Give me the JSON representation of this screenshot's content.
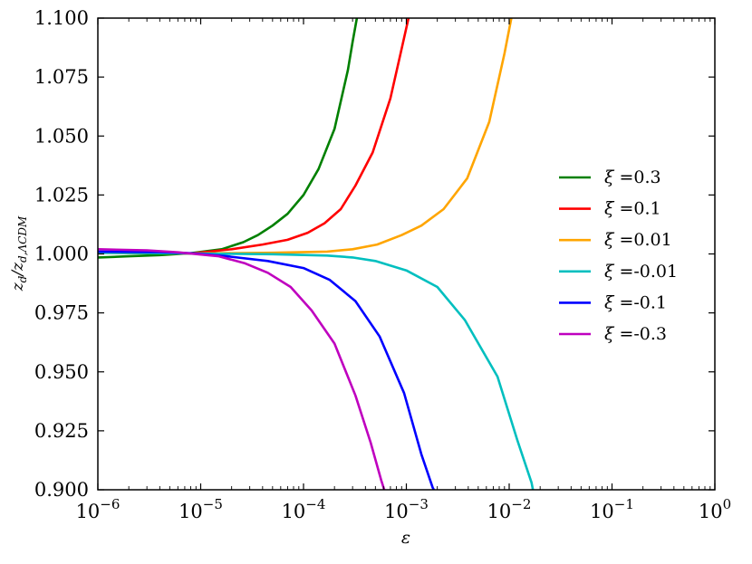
{
  "chart_data": {
    "type": "line",
    "xlabel": "ε",
    "ylabel": "z_d / z_d,ΛCDM",
    "x_scale": "log",
    "xlim": [
      1e-06,
      1
    ],
    "ylim": [
      0.9,
      1.1
    ],
    "x_ticks": [
      {
        "value": 1e-06,
        "base": "10",
        "exp": "−6"
      },
      {
        "value": 1e-05,
        "base": "10",
        "exp": "−5"
      },
      {
        "value": 0.0001,
        "base": "10",
        "exp": "−4"
      },
      {
        "value": 0.001,
        "base": "10",
        "exp": "−3"
      },
      {
        "value": 0.01,
        "base": "10",
        "exp": "−2"
      },
      {
        "value": 0.1,
        "base": "10",
        "exp": "−1"
      },
      {
        "value": 1,
        "base": "10",
        "exp": "0"
      }
    ],
    "y_ticks": [
      {
        "value": 0.9,
        "label": "0.900"
      },
      {
        "value": 0.925,
        "label": "0.925"
      },
      {
        "value": 0.95,
        "label": "0.950"
      },
      {
        "value": 0.975,
        "label": "0.975"
      },
      {
        "value": 1.0,
        "label": "1.000"
      },
      {
        "value": 1.025,
        "label": "1.025"
      },
      {
        "value": 1.05,
        "label": "1.050"
      },
      {
        "value": 1.075,
        "label": "1.075"
      },
      {
        "value": 1.1,
        "label": "1.100"
      }
    ],
    "legend_position": "center-right",
    "series": [
      {
        "name": "ξ =0.3",
        "symbol": "ξ",
        "value_label": "=0.3",
        "color": "#008000",
        "points": [
          [
            1e-06,
            0.9985
          ],
          [
            2e-06,
            0.999
          ],
          [
            4e-06,
            0.9995
          ],
          [
            8e-06,
            1.0003
          ],
          [
            1.6e-05,
            1.002
          ],
          [
            2.6e-05,
            1.005
          ],
          [
            3.6e-05,
            1.008
          ],
          [
            5e-05,
            1.012
          ],
          [
            7e-05,
            1.017
          ],
          [
            0.0001,
            1.025
          ],
          [
            0.00014,
            1.036
          ],
          [
            0.0002,
            1.053
          ],
          [
            0.00027,
            1.078
          ],
          [
            0.0003,
            1.09
          ],
          [
            0.00033,
            1.1
          ]
        ]
      },
      {
        "name": "ξ =0.1",
        "symbol": "ξ",
        "value_label": "=0.1",
        "color": "#ff0000",
        "points": [
          [
            1e-06,
            1.0005
          ],
          [
            4e-06,
            1.0003
          ],
          [
            8e-06,
            1.0002
          ],
          [
            2e-05,
            1.002
          ],
          [
            4e-05,
            1.004
          ],
          [
            7e-05,
            1.006
          ],
          [
            0.00011,
            1.009
          ],
          [
            0.00016,
            1.013
          ],
          [
            0.00023,
            1.019
          ],
          [
            0.00032,
            1.029
          ],
          [
            0.00047,
            1.043
          ],
          [
            0.0007,
            1.066
          ],
          [
            0.0009,
            1.087
          ],
          [
            0.00105,
            1.1
          ]
        ]
      },
      {
        "name": "ξ =0.01",
        "symbol": "ξ",
        "value_label": "=0.01",
        "color": "#ffa500",
        "points": [
          [
            1e-06,
            1.0005
          ],
          [
            8e-06,
            1.0002
          ],
          [
            5e-05,
            1.0005
          ],
          [
            0.00017,
            1.001
          ],
          [
            0.0003,
            1.002
          ],
          [
            0.00052,
            1.004
          ],
          [
            0.0009,
            1.008
          ],
          [
            0.0014,
            1.012
          ],
          [
            0.0023,
            1.019
          ],
          [
            0.0039,
            1.032
          ],
          [
            0.0064,
            1.056
          ],
          [
            0.009,
            1.085
          ],
          [
            0.0105,
            1.1
          ]
        ]
      },
      {
        "name": "ξ =-0.01",
        "symbol": "ξ",
        "value_label": "=-0.01",
        "color": "#00bfbf",
        "points": [
          [
            1e-06,
            1.0005
          ],
          [
            8e-06,
            1.0002
          ],
          [
            5e-05,
            0.9999
          ],
          [
            0.00017,
            0.9993
          ],
          [
            0.0003,
            0.9985
          ],
          [
            0.0005,
            0.997
          ],
          [
            0.001,
            0.993
          ],
          [
            0.002,
            0.986
          ],
          [
            0.0037,
            0.972
          ],
          [
            0.0077,
            0.948
          ],
          [
            0.012,
            0.921
          ],
          [
            0.0165,
            0.903
          ],
          [
            0.017,
            0.9
          ]
        ]
      },
      {
        "name": "ξ =-0.1",
        "symbol": "ξ",
        "value_label": "=-0.1",
        "color": "#0000ff",
        "points": [
          [
            1e-06,
            1.001
          ],
          [
            4e-06,
            1.0008
          ],
          [
            8e-06,
            1.0003
          ],
          [
            1.8e-05,
            0.999
          ],
          [
            4.5e-05,
            0.997
          ],
          [
            0.0001,
            0.994
          ],
          [
            0.00018,
            0.989
          ],
          [
            0.00032,
            0.98
          ],
          [
            0.00055,
            0.965
          ],
          [
            0.00095,
            0.941
          ],
          [
            0.0014,
            0.915
          ],
          [
            0.0018,
            0.901
          ],
          [
            0.00185,
            0.9
          ]
        ]
      },
      {
        "name": "ξ =-0.3",
        "symbol": "ξ",
        "value_label": "=-0.3",
        "color": "#bf00bf",
        "points": [
          [
            1e-06,
            1.002
          ],
          [
            3e-06,
            1.0015
          ],
          [
            6e-06,
            1.0007
          ],
          [
            1.5e-05,
            0.999
          ],
          [
            2.7e-05,
            0.996
          ],
          [
            4.5e-05,
            0.992
          ],
          [
            7.5e-05,
            0.986
          ],
          [
            0.00012,
            0.976
          ],
          [
            0.0002,
            0.962
          ],
          [
            0.00032,
            0.94
          ],
          [
            0.00045,
            0.92
          ],
          [
            0.00057,
            0.904
          ],
          [
            0.00061,
            0.9
          ]
        ]
      }
    ]
  }
}
